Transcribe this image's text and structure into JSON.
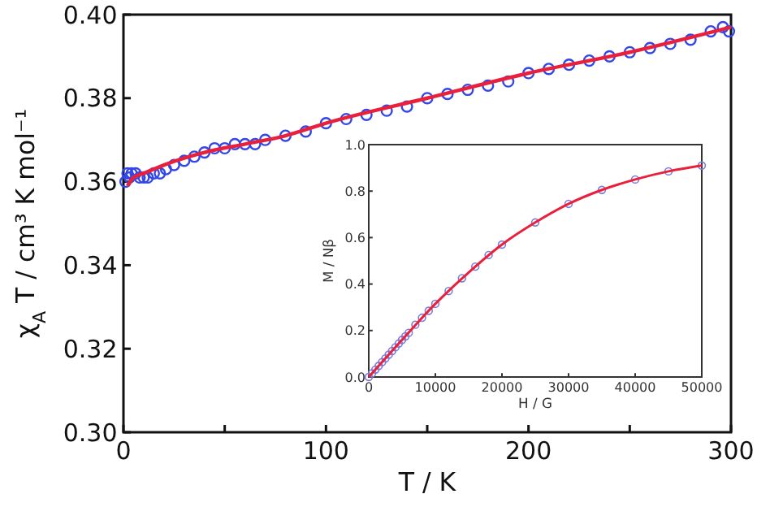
{
  "chart_data": [
    {
      "type": "scatter",
      "xlabel": "T / K",
      "ylabel": "χ$_{A}$ T / cm³ K mol⁻¹",
      "xlim": [
        0,
        300
      ],
      "ylim": [
        0.3,
        0.4
      ],
      "xticks": [
        0,
        {
          "value": 50,
          "label": null
        },
        100,
        {
          "value": 150,
          "label": null
        },
        200,
        {
          "value": 250,
          "label": null
        },
        300
      ],
      "yticks": [
        {
          "value": 0.3,
          "label": "0.30"
        },
        {
          "value": 0.32,
          "label": "0.32"
        },
        {
          "value": 0.34,
          "label": "0.34"
        },
        {
          "value": 0.36,
          "label": "0.36"
        },
        {
          "value": 0.38,
          "label": "0.38"
        },
        {
          "value": 0.4,
          "label": "0.40"
        }
      ],
      "grid": false,
      "series": [
        {
          "marker": "circle",
          "color": "#3347e8",
          "x": [
            1,
            2,
            3,
            4,
            6,
            8,
            10,
            12,
            15,
            18,
            21,
            25,
            30,
            35,
            40,
            45,
            50,
            55,
            60,
            65,
            70,
            80,
            90,
            100,
            110,
            120,
            130,
            140,
            150,
            160,
            170,
            180,
            190,
            200,
            210,
            220,
            230,
            240,
            250,
            260,
            270,
            280,
            290,
            296,
            299
          ],
          "values": [
            0.36,
            0.362,
            0.361,
            0.362,
            0.362,
            0.361,
            0.361,
            0.361,
            0.362,
            0.362,
            0.363,
            0.364,
            0.365,
            0.366,
            0.367,
            0.368,
            0.368,
            0.369,
            0.369,
            0.369,
            0.37,
            0.371,
            0.372,
            0.374,
            0.375,
            0.376,
            0.377,
            0.378,
            0.38,
            0.381,
            0.382,
            0.383,
            0.384,
            0.386,
            0.387,
            0.388,
            0.389,
            0.39,
            0.391,
            0.392,
            0.393,
            0.394,
            0.396,
            0.397,
            0.396
          ]
        },
        {
          "type": "line",
          "marker": "none",
          "color": "#e8203c",
          "x": [
            2,
            5,
            10,
            20,
            40,
            60,
            80,
            100,
            150,
            200,
            250,
            300
          ],
          "values": [
            0.359,
            0.361,
            0.362,
            0.364,
            0.367,
            0.369,
            0.371,
            0.374,
            0.38,
            0.386,
            0.391,
            0.397
          ]
        }
      ]
    },
    {
      "type": "scatter",
      "xlabel": "H / G",
      "ylabel": "M / Nβ",
      "xlim": [
        0,
        50000
      ],
      "ylim": [
        0,
        1
      ],
      "xticks": [
        0,
        10000,
        20000,
        30000,
        40000,
        50000
      ],
      "yticks": [
        {
          "value": 0,
          "label": "0.0"
        },
        {
          "value": 0.2,
          "label": "0.2"
        },
        {
          "value": 0.4,
          "label": "0.4"
        },
        {
          "value": 0.6,
          "label": "0.6"
        },
        {
          "value": 0.8,
          "label": "0.8"
        },
        {
          "value": 1,
          "label": "1.0"
        }
      ],
      "grid": false,
      "series": [
        {
          "marker": "circle",
          "color": "#7a7ad8",
          "x": [
            0,
            500,
            1000,
            1500,
            2000,
            2500,
            3000,
            3500,
            4000,
            4500,
            5000,
            5500,
            6000,
            7000,
            8000,
            9000,
            10000,
            12000,
            14000,
            16000,
            18000,
            20000,
            25000,
            30000,
            35000,
            40000,
            45000,
            50000
          ],
          "values": [
            0,
            0.016,
            0.032,
            0.048,
            0.064,
            0.08,
            0.096,
            0.112,
            0.128,
            0.144,
            0.16,
            0.175,
            0.19,
            0.225,
            0.255,
            0.285,
            0.315,
            0.37,
            0.425,
            0.475,
            0.525,
            0.57,
            0.665,
            0.745,
            0.805,
            0.85,
            0.885,
            0.91
          ]
        },
        {
          "type": "line",
          "marker": "none",
          "color": "#e8203c",
          "x": [
            0,
            5000,
            10000,
            15000,
            20000,
            25000,
            30000,
            35000,
            40000,
            45000,
            50000
          ],
          "values": [
            0,
            0.16,
            0.315,
            0.45,
            0.57,
            0.665,
            0.745,
            0.805,
            0.85,
            0.885,
            0.91
          ]
        }
      ]
    }
  ]
}
